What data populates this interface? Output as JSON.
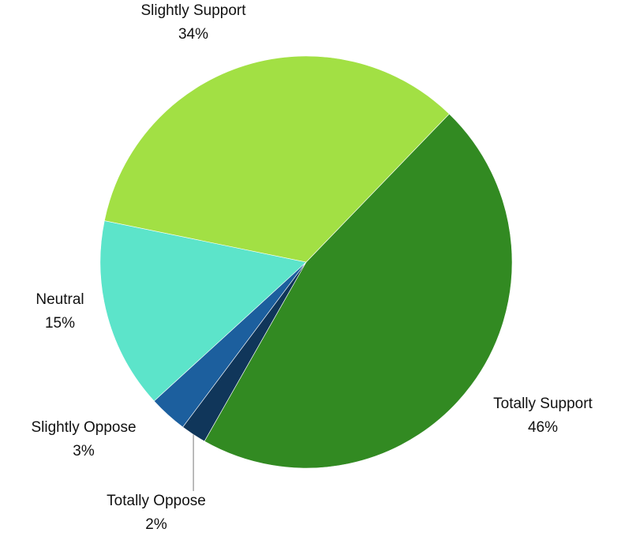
{
  "chart_data": {
    "type": "pie",
    "title": "",
    "slices": [
      {
        "label": "Totally Support",
        "value": 46,
        "value_label": "46%",
        "color": "#328a22"
      },
      {
        "label": "Totally Oppose",
        "value": 2,
        "value_label": "2%",
        "color": "#10365a"
      },
      {
        "label": "Slightly Oppose",
        "value": 3,
        "value_label": "3%",
        "color": "#1c5f9e"
      },
      {
        "label": "Neutral",
        "value": 15,
        "value_label": "15%",
        "color": "#5ce4ca"
      },
      {
        "label": "Slightly Support",
        "value": 34,
        "value_label": "34%",
        "color": "#a2e044"
      }
    ],
    "legend": "none",
    "labels_outside": true
  }
}
